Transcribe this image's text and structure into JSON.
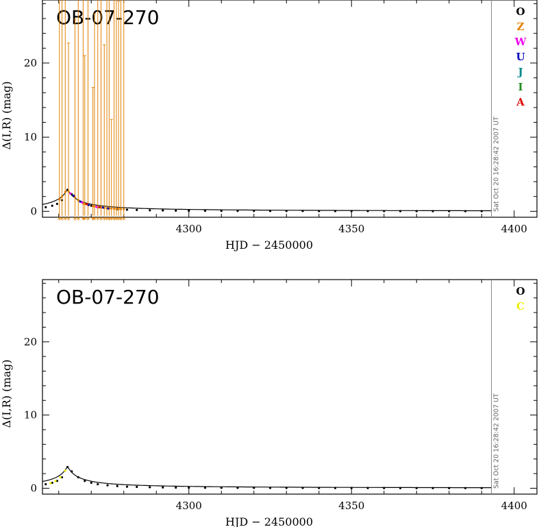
{
  "chart_data": [
    {
      "type": "scatter",
      "title": "OB-07-270",
      "xlabel": "HJD − 2450000",
      "ylabel": "Δ(I,R) (mag)",
      "xlim": [
        4255,
        4407
      ],
      "ylim": [
        -0.8,
        28.5
      ],
      "xticks": [
        4300,
        4350,
        4400
      ],
      "yticks": [
        0,
        10,
        20
      ],
      "timestamp": "Sat Oct 20 16:28:42 2007 UT",
      "timestamp_line_x": 4393,
      "legend": [
        {
          "label": "O",
          "color": "#000000"
        },
        {
          "label": "Z",
          "color": "#e08000"
        },
        {
          "label": "W",
          "color": "#ee00ee"
        },
        {
          "label": "U",
          "color": "#0000bb"
        },
        {
          "label": "J",
          "color": "#008b8b"
        },
        {
          "label": "I",
          "color": "#228b22"
        },
        {
          "label": "A",
          "color": "#dd0000"
        }
      ],
      "model_curve": {
        "t0": 4262.7,
        "peak": 3.0,
        "tE": 5.5,
        "color": "#000000"
      },
      "series": [
        {
          "name": "O",
          "color": "#000000",
          "x": [
            4256,
            4258,
            4259.5,
            4261,
            4262.7,
            4264,
            4266,
            4268,
            4270,
            4272,
            4275,
            4278,
            4281,
            4284,
            4288,
            4292,
            4296,
            4300,
            4305,
            4310,
            4315,
            4320,
            4325,
            4330,
            4335,
            4340,
            4345,
            4350,
            4355,
            4360,
            4365,
            4370,
            4375,
            4380,
            4385,
            4390
          ],
          "y": [
            0.55,
            0.75,
            1.0,
            1.5,
            2.9,
            2.3,
            1.5,
            1.0,
            0.75,
            0.55,
            0.4,
            0.3,
            0.22,
            0.18,
            0.14,
            0.11,
            0.09,
            0.08,
            0.07,
            0.06,
            0.05,
            0.05,
            0.04,
            0.04,
            0.04,
            0.03,
            0.03,
            0.03,
            0.03,
            0.03,
            0.02,
            0.02,
            0.02,
            0.02,
            0.02,
            0.02
          ]
        },
        {
          "name": "Z",
          "color": "#e08000",
          "x": [
            4260.2,
            4261.0,
            4262.0,
            4263.0,
            4265.0,
            4266.0,
            4267.5,
            4268.0,
            4269.0,
            4270.5,
            4271.0,
            4272.0,
            4273.0,
            4274.0,
            4274.8,
            4275.5,
            4276.2,
            4277.0,
            4277.7,
            4278.4,
            4279.1,
            4280.0
          ],
          "y": [
            1.6,
            2.0,
            2.6,
            2.7,
            1.9,
            1.5,
            1.1,
            1.0,
            0.9,
            0.7,
            0.65,
            0.6,
            0.5,
            0.45,
            0.42,
            0.4,
            0.38,
            0.35,
            0.33,
            0.31,
            0.3,
            0.28
          ],
          "err": [
            30,
            30,
            30,
            20,
            24,
            30,
            30,
            20,
            30,
            16,
            26,
            30,
            30,
            22,
            30,
            30,
            12,
            30,
            30,
            28,
            30,
            30
          ]
        },
        {
          "name": "W",
          "color": "#ee00ee",
          "x": [
            4263.6,
            4267.2,
            4271.6
          ],
          "y": [
            2.4,
            1.2,
            0.6
          ]
        },
        {
          "name": "U",
          "color": "#0000bb",
          "x": [
            4264.6,
            4266.6,
            4269.2,
            4273.6,
            4275.2
          ],
          "y": [
            2.1,
            1.3,
            0.85,
            0.5,
            0.38
          ]
        },
        {
          "name": "A",
          "color": "#dd0000",
          "x": [
            4268.6,
            4272.6
          ],
          "y": [
            0.95,
            0.55
          ]
        }
      ]
    },
    {
      "type": "scatter",
      "title": "OB-07-270",
      "xlabel": "HJD − 2450000",
      "ylabel": "Δ(I,R) (mag)",
      "xlim": [
        4255,
        4407
      ],
      "ylim": [
        -0.8,
        28.5
      ],
      "xticks": [
        4300,
        4350,
        4400
      ],
      "yticks": [
        0,
        10,
        20
      ],
      "timestamp": "Sat Oct 20 16:28:42 2007 UT",
      "timestamp_line_x": 4393,
      "legend": [
        {
          "label": "O",
          "color": "#000000"
        },
        {
          "label": "C",
          "color": "#eeee00"
        }
      ],
      "model_curve": {
        "t0": 4262.7,
        "peak": 3.0,
        "tE": 5.5,
        "color": "#000000"
      },
      "series": [
        {
          "name": "O",
          "color": "#000000",
          "x": [
            4256,
            4258,
            4259.5,
            4261,
            4262.7,
            4264,
            4266,
            4268,
            4270,
            4272,
            4275,
            4278,
            4281,
            4284,
            4288,
            4292,
            4296,
            4300,
            4305,
            4310,
            4315,
            4320,
            4325,
            4330,
            4335,
            4340,
            4345,
            4350,
            4355,
            4360,
            4365,
            4370,
            4375,
            4380,
            4385,
            4390
          ],
          "y": [
            0.55,
            0.75,
            1.0,
            1.5,
            2.9,
            2.3,
            1.5,
            1.0,
            0.75,
            0.55,
            0.4,
            0.3,
            0.22,
            0.18,
            0.14,
            0.11,
            0.09,
            0.08,
            0.07,
            0.06,
            0.05,
            0.05,
            0.04,
            0.04,
            0.04,
            0.03,
            0.03,
            0.03,
            0.03,
            0.03,
            0.02,
            0.02,
            0.02,
            0.02,
            0.02,
            0.02
          ]
        },
        {
          "name": "C",
          "color": "#eeee00",
          "x": [
            4257.5,
            4259.0,
            4260.5,
            4262.0
          ],
          "y": [
            0.7,
            1.0,
            1.5,
            2.4
          ]
        }
      ]
    }
  ]
}
